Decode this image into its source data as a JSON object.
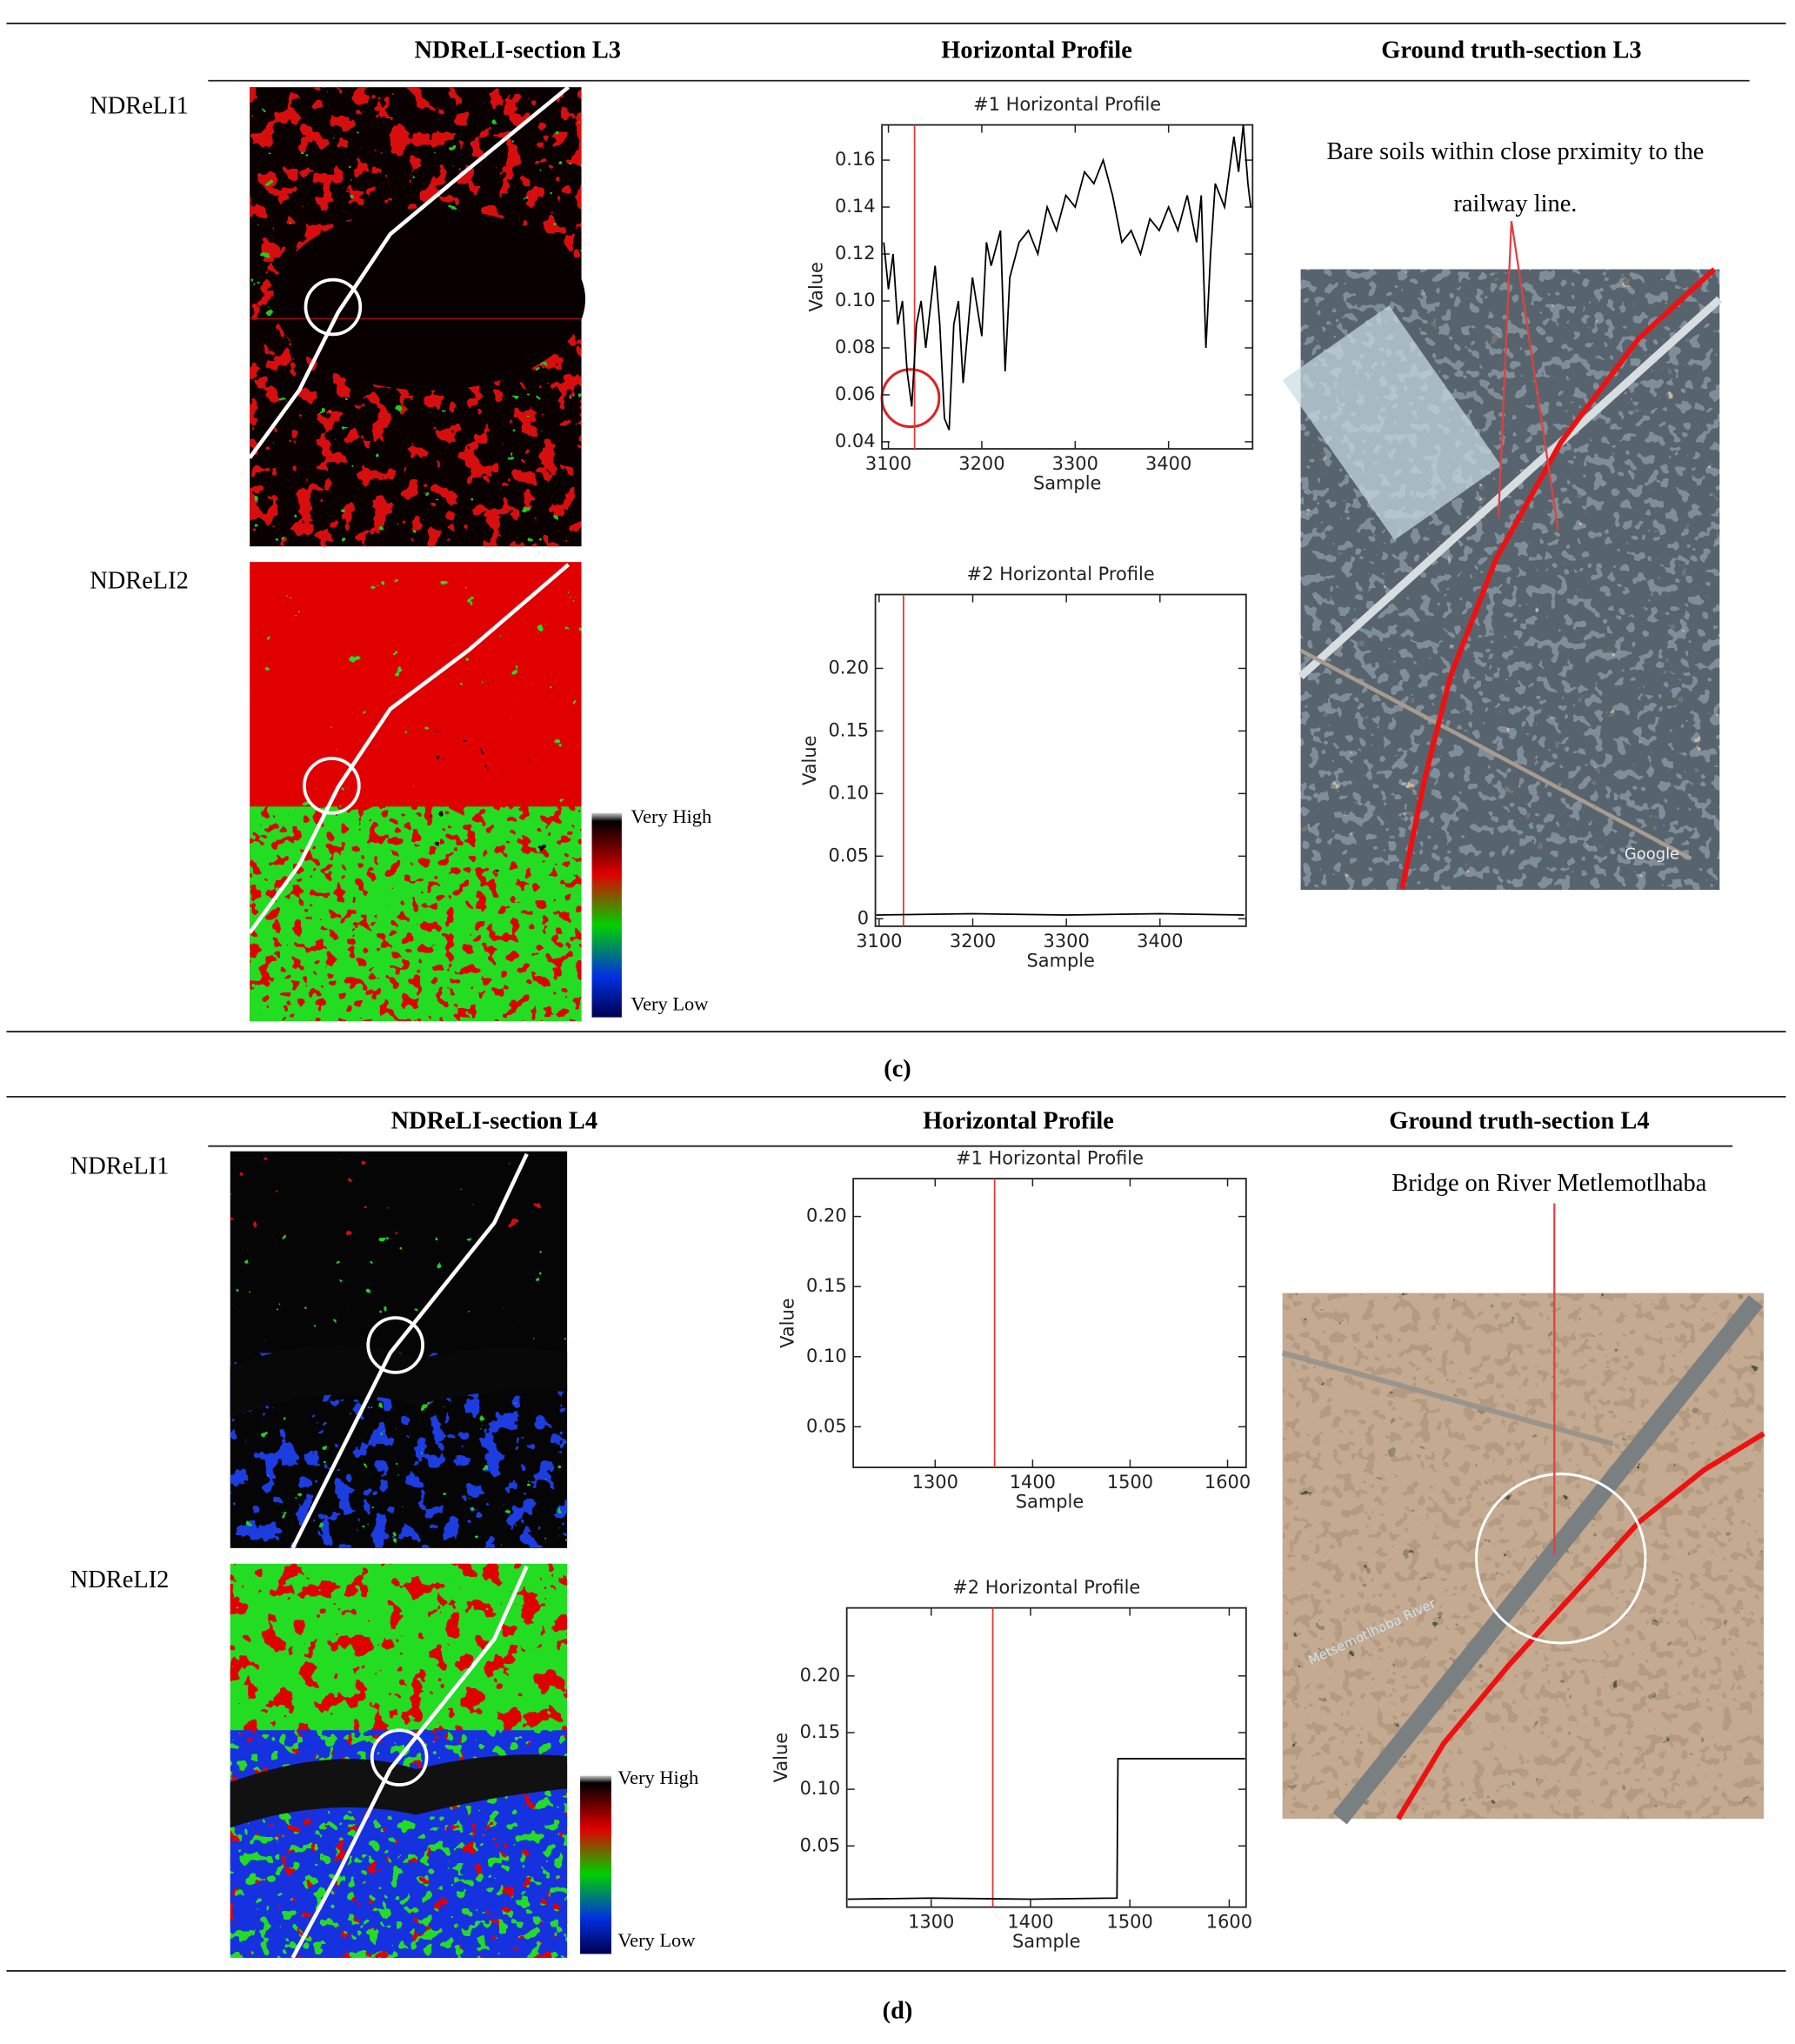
{
  "panels": [
    {
      "headers": [
        "NDReLI-section L3",
        "Horizontal Profile",
        "Ground truth-section L3"
      ],
      "row_labels": [
        "NDReLI1",
        "NDReLI2"
      ],
      "legend": {
        "high": "Very High",
        "low": "Very Low"
      },
      "profiles": [
        {
          "type": "line",
          "title": "#1 Horizontal Profile",
          "x_label": "Sample",
          "y_label": "Value",
          "xlim": [
            3093,
            3490
          ],
          "ylim": [
            0.037,
            0.175
          ],
          "xticks": [
            3100,
            3200,
            3300,
            3400
          ],
          "yticks": [
            0.04,
            0.06,
            0.08,
            {
              "value": 0.1,
              "label": "0.10"
            },
            0.12,
            0.14,
            0.16
          ],
          "x": [
            3095,
            3100,
            3105,
            3110,
            3115,
            3120,
            3125,
            3130,
            3135,
            3140,
            3150,
            3155,
            3160,
            3165,
            3170,
            3175,
            3180,
            3190,
            3200,
            3205,
            3210,
            3220,
            3225,
            3230,
            3240,
            3250,
            3260,
            3270,
            3280,
            3290,
            3300,
            3310,
            3320,
            3330,
            3340,
            3350,
            3360,
            3370,
            3380,
            3390,
            3400,
            3410,
            3420,
            3430,
            3435,
            3440,
            3445,
            3450,
            3460,
            3470,
            3475,
            3480,
            3485,
            3488
          ],
          "values": [
            0.125,
            0.105,
            0.12,
            0.09,
            0.1,
            0.07,
            0.055,
            0.09,
            0.1,
            0.08,
            0.115,
            0.09,
            0.05,
            0.045,
            0.09,
            0.1,
            0.065,
            0.11,
            0.085,
            0.125,
            0.115,
            0.13,
            0.07,
            0.11,
            0.125,
            0.13,
            0.12,
            0.14,
            0.13,
            0.145,
            0.14,
            0.155,
            0.15,
            0.16,
            0.145,
            0.125,
            0.13,
            0.12,
            0.135,
            0.13,
            0.14,
            0.13,
            0.145,
            0.125,
            0.145,
            0.08,
            0.12,
            0.15,
            0.14,
            0.17,
            0.155,
            0.175,
            0.15,
            0.14
          ],
          "color": "#000000",
          "marker_x": 3128,
          "marker_color": "#e03a3a"
        },
        {
          "type": "line",
          "title": "#2 Horizontal Profile",
          "x_label": "Sample",
          "y_label": "Value",
          "xlim": [
            3096,
            3492
          ],
          "ylim": [
            -0.006,
            0.259
          ],
          "xticks": [
            3100,
            3200,
            3300,
            3400
          ],
          "yticks": [
            0,
            0.05,
            {
              "value": 0.1,
              "label": "0.10"
            },
            0.15,
            {
              "value": 0.2,
              "label": "0.20"
            }
          ],
          "x": [
            3097,
            3200,
            3300,
            3400,
            3490
          ],
          "values": [
            0.003,
            0.004,
            0.003,
            0.004,
            0.003
          ],
          "color": "#000000",
          "marker_x": 3126,
          "marker_color": "#e03a3a"
        }
      ],
      "ground_truth": {
        "annotation": [
          "Bare soils within close prximity to the",
          "railway line."
        ],
        "watermark": "Google"
      },
      "caption": "(c)"
    },
    {
      "headers": [
        "NDReLI-section L4",
        "Horizontal Profile",
        "Ground truth-section L4"
      ],
      "row_labels": [
        "NDReLI1",
        "NDReLI2"
      ],
      "legend": {
        "high": "Very High",
        "low": "Very Low"
      },
      "profiles": [
        {
          "type": "line",
          "title": "#1 Horizontal Profile",
          "x_label": "Sample",
          "y_label": "Value",
          "xlim": [
            1216,
            1619
          ],
          "ylim": [
            0.021,
            0.227
          ],
          "xticks": [
            1300,
            1400,
            1500,
            1600
          ],
          "yticks": [
            0.05,
            {
              "value": 0.1,
              "label": "0.10"
            },
            0.15,
            {
              "value": 0.2,
              "label": "0.20"
            }
          ],
          "color": "#000000",
          "marker_x": 1361,
          "marker_color": "#e03a3a"
        },
        {
          "type": "line",
          "title": "#2 Horizontal Profile",
          "x_label": "Sample",
          "y_label": "Value",
          "xlim": [
            1215,
            1617
          ],
          "ylim": [
            -0.004,
            0.26
          ],
          "xticks": [
            1300,
            1400,
            1500,
            1600
          ],
          "yticks": [
            0.05,
            {
              "value": 0.1,
              "label": "0.10"
            },
            0.15,
            {
              "value": 0.2,
              "label": "0.20"
            }
          ],
          "x": [
            1216,
            1300,
            1400,
            1487,
            1488,
            1616
          ],
          "values": [
            0.003,
            0.004,
            0.003,
            0.004,
            0.127,
            0.127
          ],
          "color": "#000000",
          "marker_x": 1362,
          "marker_color": "#e03a3a"
        }
      ],
      "ground_truth": {
        "annotation": [
          "Bridge on River Metlemotlhaba"
        ],
        "watermark": "Metsemotlhaba River"
      },
      "caption": "(d)"
    }
  ]
}
